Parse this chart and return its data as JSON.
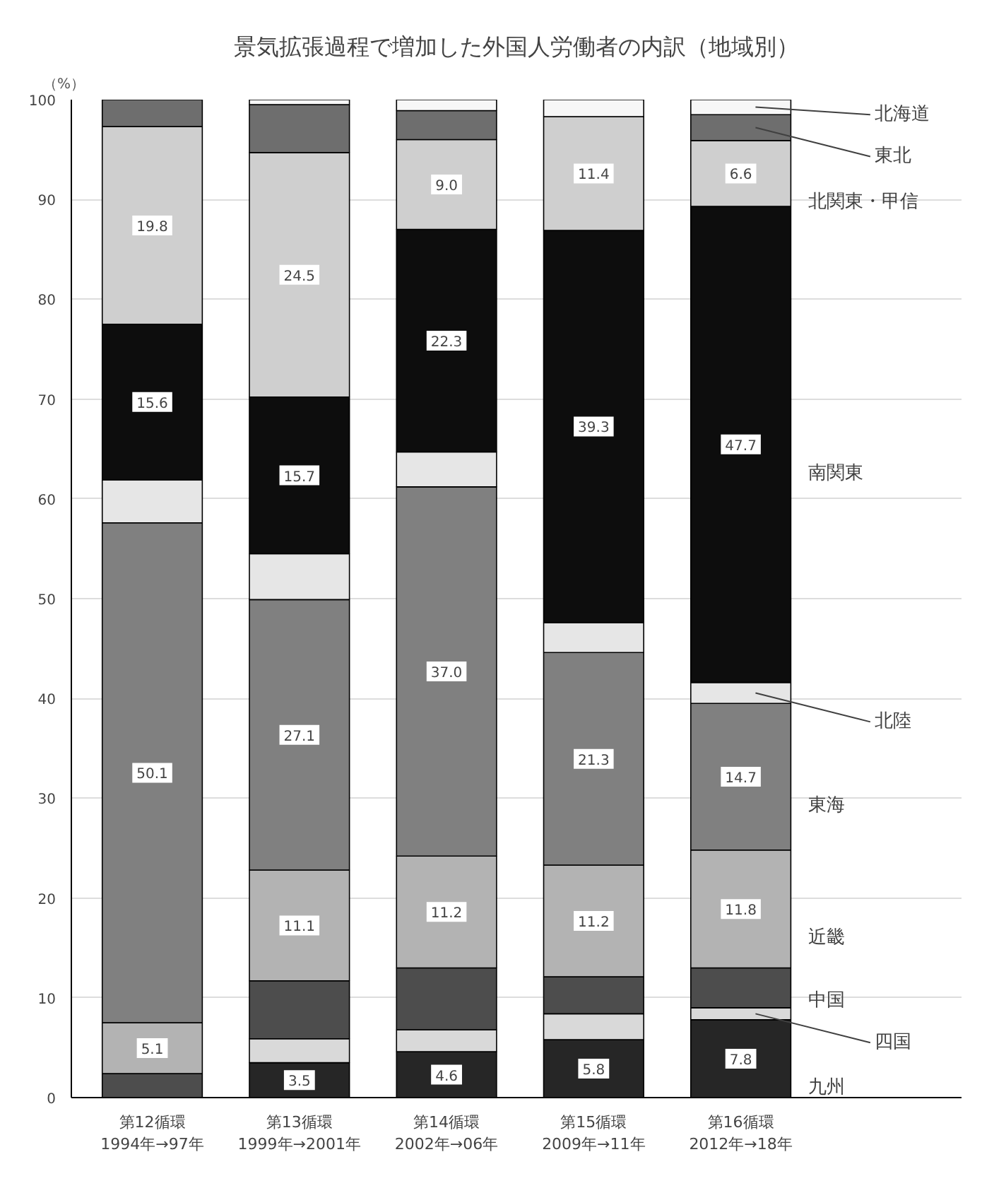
{
  "chart_data": {
    "type": "bar",
    "stacked": true,
    "title": "景気拡張過程で増加した外国人労働者の内訳（地域別）",
    "ylabel": "（%）",
    "categories": [
      "第12循環\n1994年→97年",
      "第13循環\n1999年→2001年",
      "第14循環\n2002年→06年",
      "第15循環\n2009年→11年",
      "第16循環\n2012年→18年"
    ],
    "ylim": [
      0,
      100
    ],
    "yticks": [
      0,
      10,
      20,
      30,
      40,
      50,
      60,
      70,
      80,
      90,
      100
    ],
    "grid": "y",
    "legend": "right",
    "series": [
      {
        "name": "九州",
        "color": "#262626",
        "values": [
          null,
          3.5,
          4.6,
          5.8,
          7.8
        ],
        "value_labels": [
          null,
          "3.5",
          "4.6",
          "5.8",
          "7.8"
        ]
      },
      {
        "name": "四国",
        "color": "#d9d9d9",
        "values": [
          null,
          2.4,
          2.2,
          2.6,
          1.2
        ],
        "value_labels": [
          null,
          null,
          null,
          null,
          null
        ]
      },
      {
        "name": "中国",
        "color": "#4d4d4d",
        "values": [
          2.4,
          5.8,
          6.2,
          3.7,
          4.0
        ],
        "value_labels": [
          null,
          null,
          null,
          null,
          null
        ]
      },
      {
        "name": "近畿",
        "color": "#b3b3b3",
        "values": [
          5.1,
          11.1,
          11.2,
          11.2,
          11.8
        ],
        "value_labels": [
          "5.1",
          "11.1",
          "11.2",
          "11.2",
          "11.8"
        ]
      },
      {
        "name": "東海",
        "color": "#808080",
        "values": [
          50.1,
          27.1,
          37.0,
          21.3,
          14.7
        ],
        "value_labels": [
          "50.1",
          "27.1",
          "37.0",
          "21.3",
          "14.7"
        ]
      },
      {
        "name": "北陸",
        "color": "#e6e6e6",
        "values": [
          4.3,
          4.6,
          3.5,
          3.0,
          2.1
        ],
        "value_labels": [
          null,
          null,
          null,
          null,
          null
        ]
      },
      {
        "name": "南関東",
        "color": "#0d0d0d",
        "values": [
          15.6,
          15.7,
          22.3,
          39.3,
          47.7
        ],
        "value_labels": [
          "15.6",
          "15.7",
          "22.3",
          "39.3",
          "47.7"
        ]
      },
      {
        "name": "北関東・甲信",
        "color": "#cfcfcf",
        "values": [
          19.8,
          24.5,
          9.0,
          11.4,
          6.6
        ],
        "value_labels": [
          "19.8",
          "24.5",
          "9.0",
          "11.4",
          "6.6"
        ]
      },
      {
        "name": "東北",
        "color": "#6e6e6e",
        "values": [
          2.7,
          4.8,
          2.9,
          0.0,
          2.6
        ],
        "value_labels": [
          null,
          null,
          null,
          null,
          null
        ]
      },
      {
        "name": "北海道",
        "color": "#f7f7f7",
        "values": [
          0.0,
          0.5,
          1.1,
          1.7,
          1.5
        ],
        "value_labels": [
          null,
          null,
          null,
          null,
          null
        ]
      }
    ]
  }
}
